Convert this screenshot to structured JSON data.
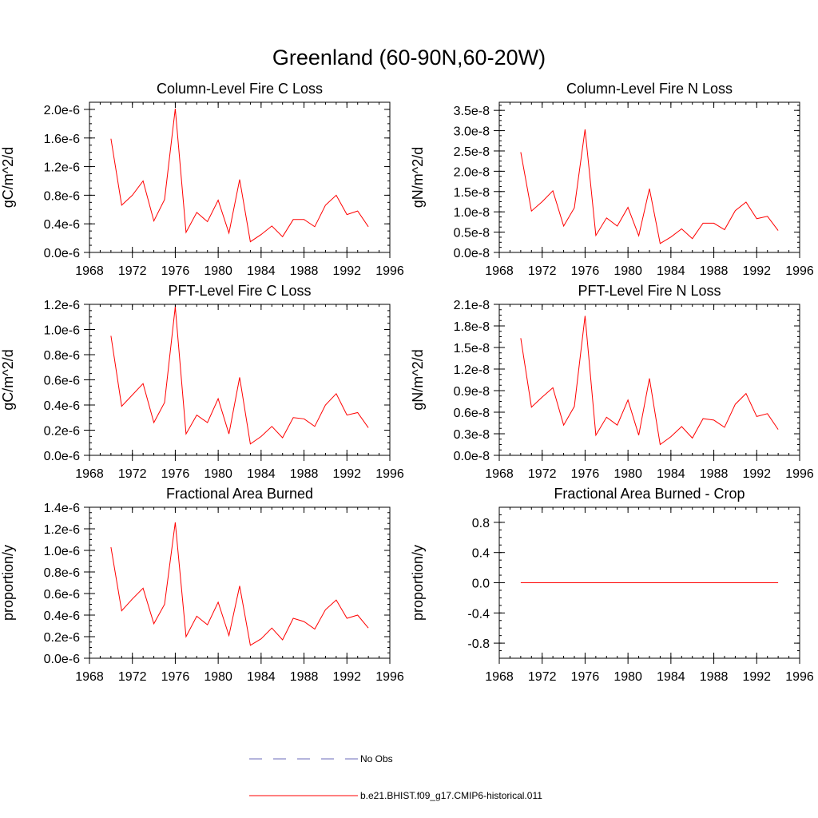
{
  "figure": {
    "title": "Greenland (60-90N,60-20W)"
  },
  "legend": {
    "entries": [
      {
        "label": "No Obs",
        "color": "#6b6bb8",
        "dashed": true
      },
      {
        "label": "b.e21.BHIST.f09_g17.CMIP6-historical.011",
        "color": "#ff0000",
        "dashed": false
      }
    ]
  },
  "chart_data": [
    {
      "type": "line",
      "title": "Column-Level Fire C Loss",
      "ylabel": "gC/m^2/d",
      "xlim": [
        1968,
        1996
      ],
      "ylim": [
        0,
        2.1e-06
      ],
      "xticks": [
        1968,
        1972,
        1976,
        1980,
        1984,
        1988,
        1992,
        1996
      ],
      "xtick_labels": [
        "1968",
        "1972",
        "1976",
        "1980",
        "1984",
        "1988",
        "1992",
        "1996"
      ],
      "yticks": [
        0,
        4e-07,
        8e-07,
        1.2e-06,
        1.6e-06,
        2e-06
      ],
      "ytick_labels": [
        "0.0e-6",
        "0.4e-6",
        "0.8e-6",
        "1.2e-6",
        "1.6e-6",
        "2.0e-6"
      ],
      "x": [
        1970,
        1971,
        1972,
        1973,
        1974,
        1975,
        1976,
        1977,
        1978,
        1979,
        1980,
        1981,
        1982,
        1983,
        1984,
        1985,
        1986,
        1987,
        1988,
        1989,
        1990,
        1991,
        1992,
        1993,
        1994
      ],
      "series": [
        {
          "color": "#ff0000",
          "values": [
            1.59e-06,
            6.6e-07,
            8e-07,
            1e-06,
            4.4e-07,
            7.4e-07,
            2.01e-06,
            2.8e-07,
            5.6e-07,
            4.3e-07,
            7.3e-07,
            2.7e-07,
            1.02e-06,
            1.5e-07,
            2.5e-07,
            3.7e-07,
            2.2e-07,
            4.6e-07,
            4.6e-07,
            3.6e-07,
            6.6e-07,
            8e-07,
            5.3e-07,
            5.8e-07,
            3.6e-07
          ]
        }
      ]
    },
    {
      "type": "line",
      "title": "Column-Level Fire N Loss",
      "ylabel": "gN/m^2/d",
      "xlim": [
        1968,
        1996
      ],
      "ylim": [
        0,
        3.7e-08
      ],
      "xticks": [
        1968,
        1972,
        1976,
        1980,
        1984,
        1988,
        1992,
        1996
      ],
      "xtick_labels": [
        "1968",
        "1972",
        "1976",
        "1980",
        "1984",
        "1988",
        "1992",
        "1996"
      ],
      "yticks": [
        0,
        5e-09,
        1e-08,
        1.5e-08,
        2e-08,
        2.5e-08,
        3e-08,
        3.5e-08
      ],
      "ytick_labels": [
        "0.0e-8",
        "0.5e-8",
        "1.0e-8",
        "1.5e-8",
        "2.0e-8",
        "2.5e-8",
        "3.0e-8",
        "3.5e-8"
      ],
      "x": [
        1970,
        1971,
        1972,
        1973,
        1974,
        1975,
        1976,
        1977,
        1978,
        1979,
        1980,
        1981,
        1982,
        1983,
        1984,
        1985,
        1986,
        1987,
        1988,
        1989,
        1990,
        1991,
        1992,
        1993,
        1994
      ],
      "series": [
        {
          "color": "#ff0000",
          "values": [
            2.47e-08,
            1.02e-08,
            1.25e-08,
            1.52e-08,
            6.5e-09,
            1.1e-08,
            3.03e-08,
            4.2e-09,
            8.5e-09,
            6.5e-09,
            1.11e-08,
            4.1e-09,
            1.57e-08,
            2.2e-09,
            3.8e-09,
            5.8e-09,
            3.4e-09,
            7.2e-09,
            7.2e-09,
            5.6e-09,
            1.03e-08,
            1.24e-08,
            8.3e-09,
            8.9e-09,
            5.4e-09
          ]
        }
      ]
    },
    {
      "type": "line",
      "title": "PFT-Level Fire C Loss",
      "ylabel": "gC/m^2/d",
      "xlim": [
        1968,
        1996
      ],
      "ylim": [
        0,
        1.2e-06
      ],
      "xticks": [
        1968,
        1972,
        1976,
        1980,
        1984,
        1988,
        1992,
        1996
      ],
      "xtick_labels": [
        "1968",
        "1972",
        "1976",
        "1980",
        "1984",
        "1988",
        "1992",
        "1996"
      ],
      "yticks": [
        0,
        2e-07,
        4e-07,
        6e-07,
        8e-07,
        1e-06,
        1.2e-06
      ],
      "ytick_labels": [
        "0.0e-6",
        "0.2e-6",
        "0.4e-6",
        "0.6e-6",
        "0.8e-6",
        "1.0e-6",
        "1.2e-6"
      ],
      "x": [
        1970,
        1971,
        1972,
        1973,
        1974,
        1975,
        1976,
        1977,
        1978,
        1979,
        1980,
        1981,
        1982,
        1983,
        1984,
        1985,
        1986,
        1987,
        1988,
        1989,
        1990,
        1991,
        1992,
        1993,
        1994
      ],
      "series": [
        {
          "color": "#ff0000",
          "values": [
            9.5e-07,
            3.9e-07,
            4.8e-07,
            5.7e-07,
            2.6e-07,
            4.2e-07,
            1.18e-06,
            1.7e-07,
            3.2e-07,
            2.6e-07,
            4.5e-07,
            1.7e-07,
            6.2e-07,
            9e-08,
            1.5e-07,
            2.3e-07,
            1.4e-07,
            3e-07,
            2.9e-07,
            2.3e-07,
            4e-07,
            4.9e-07,
            3.2e-07,
            3.4e-07,
            2.2e-07
          ]
        }
      ]
    },
    {
      "type": "line",
      "title": "PFT-Level Fire N Loss",
      "ylabel": "gN/m^2/d",
      "xlim": [
        1968,
        1996
      ],
      "ylim": [
        0,
        2.1e-08
      ],
      "xticks": [
        1968,
        1972,
        1976,
        1980,
        1984,
        1988,
        1992,
        1996
      ],
      "xtick_labels": [
        "1968",
        "1972",
        "1976",
        "1980",
        "1984",
        "1988",
        "1992",
        "1996"
      ],
      "yticks": [
        0,
        3e-09,
        6e-09,
        9e-09,
        1.2e-08,
        1.5e-08,
        1.8e-08,
        2.1e-08
      ],
      "ytick_labels": [
        "0.0e-8",
        "0.3e-8",
        "0.6e-8",
        "0.9e-8",
        "1.2e-8",
        "1.5e-8",
        "1.8e-8",
        "2.1e-8"
      ],
      "x": [
        1970,
        1971,
        1972,
        1973,
        1974,
        1975,
        1976,
        1977,
        1978,
        1979,
        1980,
        1981,
        1982,
        1983,
        1984,
        1985,
        1986,
        1987,
        1988,
        1989,
        1990,
        1991,
        1992,
        1993,
        1994
      ],
      "series": [
        {
          "color": "#ff0000",
          "values": [
            1.63e-08,
            6.7e-09,
            8.1e-09,
            9.4e-09,
            4.2e-09,
            6.8e-09,
            1.94e-08,
            2.8e-09,
            5.3e-09,
            4.2e-09,
            7.7e-09,
            2.8e-09,
            1.07e-08,
            1.5e-09,
            2.6e-09,
            4e-09,
            2.4e-09,
            5.1e-09,
            4.9e-09,
            3.9e-09,
            7.1e-09,
            8.6e-09,
            5.4e-09,
            5.8e-09,
            3.6e-09
          ]
        }
      ]
    },
    {
      "type": "line",
      "title": "Fractional Area Burned",
      "ylabel": "proportion/y",
      "xlim": [
        1968,
        1996
      ],
      "ylim": [
        0,
        1.4e-06
      ],
      "xticks": [
        1968,
        1972,
        1976,
        1980,
        1984,
        1988,
        1992,
        1996
      ],
      "xtick_labels": [
        "1968",
        "1972",
        "1976",
        "1980",
        "1984",
        "1988",
        "1992",
        "1996"
      ],
      "yticks": [
        0,
        2e-07,
        4e-07,
        6e-07,
        8e-07,
        1e-06,
        1.2e-06,
        1.4e-06
      ],
      "ytick_labels": [
        "0.0e-6",
        "0.2e-6",
        "0.4e-6",
        "0.6e-6",
        "0.8e-6",
        "1.0e-6",
        "1.2e-6",
        "1.4e-6"
      ],
      "x": [
        1970,
        1971,
        1972,
        1973,
        1974,
        1975,
        1976,
        1977,
        1978,
        1979,
        1980,
        1981,
        1982,
        1983,
        1984,
        1985,
        1986,
        1987,
        1988,
        1989,
        1990,
        1991,
        1992,
        1993,
        1994
      ],
      "series": [
        {
          "color": "#ff0000",
          "values": [
            1.03e-06,
            4.4e-07,
            5.5e-07,
            6.5e-07,
            3.2e-07,
            5e-07,
            1.26e-06,
            2e-07,
            3.9e-07,
            3.1e-07,
            5.2e-07,
            2.1e-07,
            6.7e-07,
            1.2e-07,
            1.8e-07,
            2.8e-07,
            1.7e-07,
            3.7e-07,
            3.4e-07,
            2.7e-07,
            4.5e-07,
            5.4e-07,
            3.7e-07,
            4e-07,
            2.8e-07
          ]
        }
      ]
    },
    {
      "type": "line",
      "title": "Fractional Area Burned - Crop",
      "ylabel": "proportion/y",
      "xlim": [
        1968,
        1996
      ],
      "ylim": [
        -1.0,
        1.0
      ],
      "xticks": [
        1968,
        1972,
        1976,
        1980,
        1984,
        1988,
        1992,
        1996
      ],
      "xtick_labels": [
        "1968",
        "1972",
        "1976",
        "1980",
        "1984",
        "1988",
        "1992",
        "1996"
      ],
      "yticks": [
        -0.8,
        -0.4,
        0.0,
        0.4,
        0.8
      ],
      "ytick_labels": [
        "-0.8",
        "-0.4",
        "0.0",
        "0.4",
        "0.8"
      ],
      "x": [
        1970,
        1994
      ],
      "series": [
        {
          "color": "#ff0000",
          "values": [
            0,
            0
          ]
        }
      ]
    }
  ]
}
